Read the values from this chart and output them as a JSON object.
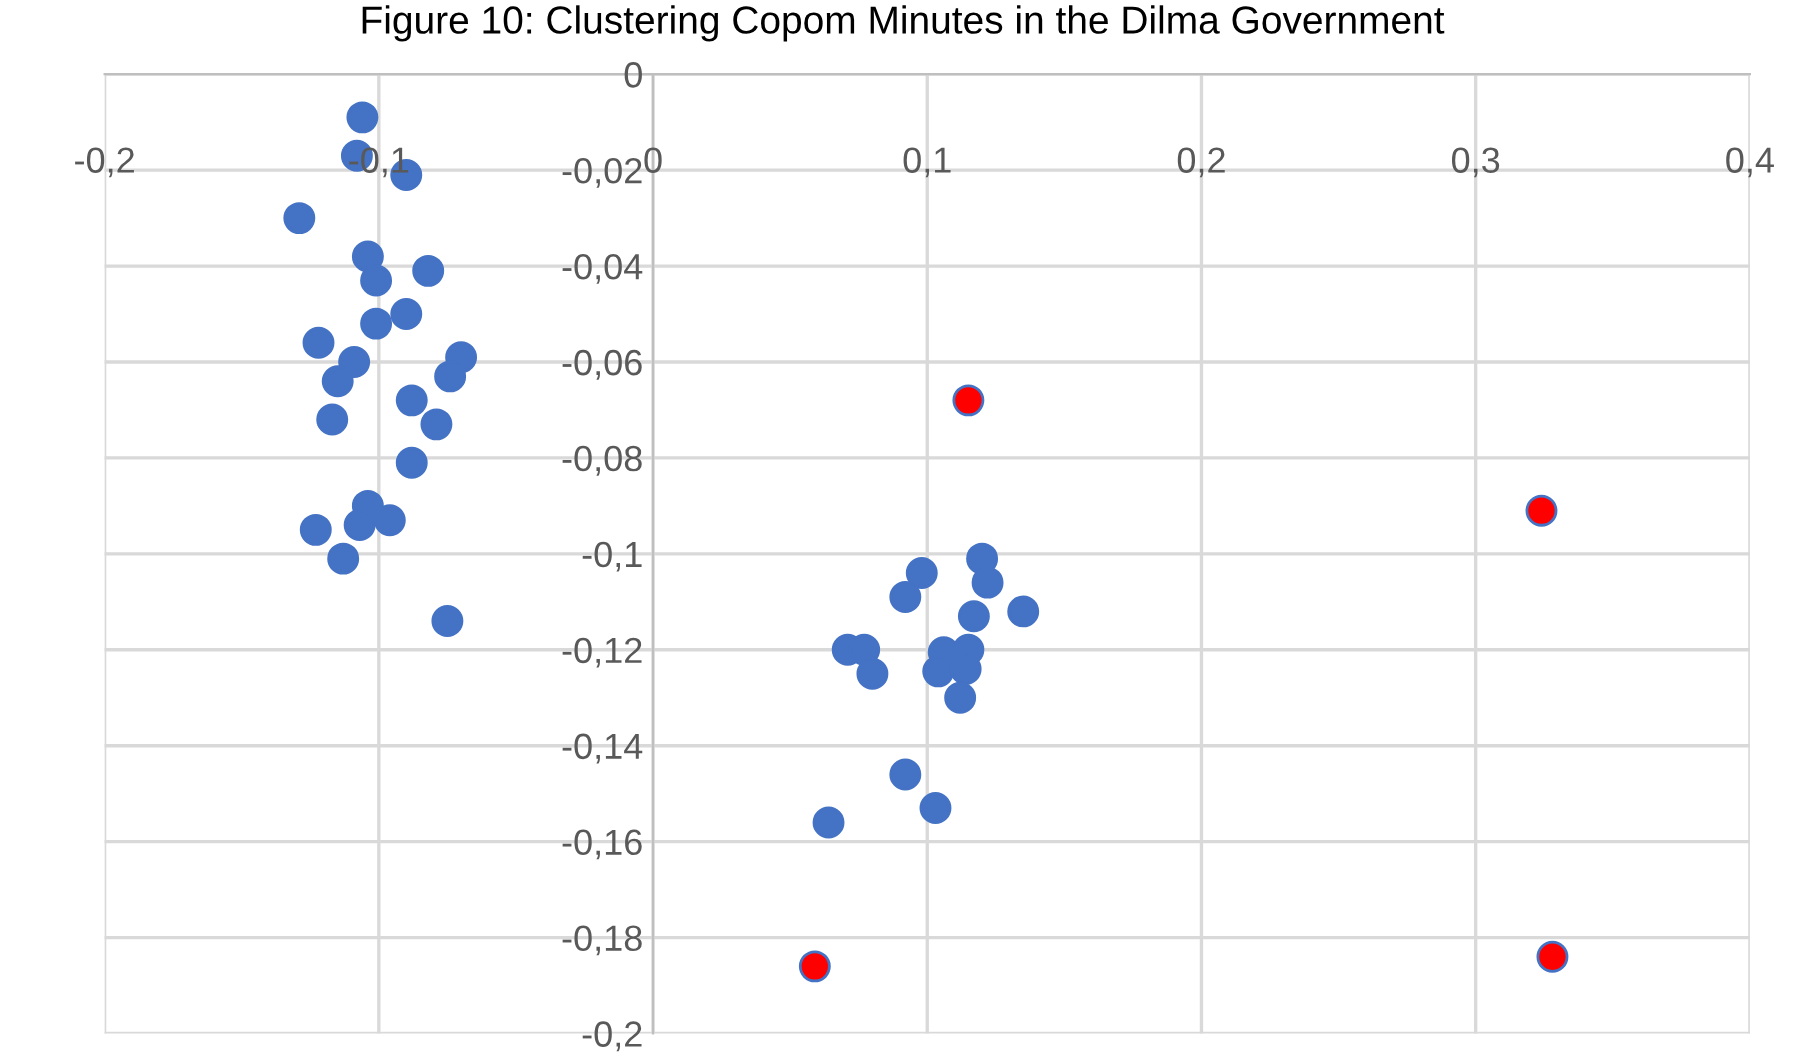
{
  "chart_data": {
    "type": "scatter",
    "title": "Figure 10: Clustering Copom Minutes in the Dilma Government",
    "xlim": [
      -0.2,
      0.4
    ],
    "ylim": [
      -0.2,
      0
    ],
    "xticks": [
      {
        "value": -0.2,
        "label": "-0,2"
      },
      {
        "value": -0.1,
        "label": "-0,1"
      },
      0,
      {
        "value": 0.1,
        "label": "0,1"
      },
      {
        "value": 0.2,
        "label": "0,2"
      },
      {
        "value": 0.3,
        "label": "0,3"
      },
      {
        "value": 0.4,
        "label": "0,4"
      }
    ],
    "yticks": [
      0,
      {
        "value": -0.02,
        "label": "-0,02"
      },
      {
        "value": -0.04,
        "label": "-0,04"
      },
      {
        "value": -0.06,
        "label": "-0,06"
      },
      {
        "value": -0.08,
        "label": "-0,08"
      },
      {
        "value": -0.1,
        "label": "-0,1"
      },
      {
        "value": -0.12,
        "label": "-0,12"
      },
      {
        "value": -0.14,
        "label": "-0,14"
      },
      {
        "value": -0.16,
        "label": "-0,16"
      },
      {
        "value": -0.18,
        "label": "-0,18"
      },
      {
        "value": -0.2,
        "label": "-0,2"
      }
    ],
    "grid": true,
    "marker": "circle",
    "series": [
      {
        "color": "#4472c4",
        "x": [
          -0.106,
          -0.108,
          -0.09,
          -0.129,
          -0.104,
          -0.101,
          -0.082,
          -0.101,
          -0.09,
          -0.122,
          -0.109,
          -0.07,
          -0.074,
          -0.115,
          -0.088,
          -0.079,
          -0.117,
          -0.088,
          -0.104,
          -0.123,
          -0.107,
          -0.096,
          -0.113,
          -0.075,
          0.12,
          0.098,
          0.122,
          0.092,
          0.117,
          0.135,
          0.071,
          0.077,
          0.106,
          0.115,
          0.104,
          0.114,
          0.08,
          0.112,
          0.092,
          0.103,
          0.064
        ],
        "values": [
          -0.009,
          -0.017,
          -0.021,
          -0.03,
          -0.038,
          -0.043,
          -0.041,
          -0.052,
          -0.05,
          -0.056,
          -0.06,
          -0.059,
          -0.063,
          -0.064,
          -0.068,
          -0.073,
          -0.072,
          -0.081,
          -0.09,
          -0.095,
          -0.094,
          -0.093,
          -0.101,
          -0.114,
          -0.101,
          -0.104,
          -0.106,
          -0.109,
          -0.113,
          -0.112,
          -0.12,
          -0.12,
          -0.1205,
          -0.12,
          -0.1245,
          -0.124,
          -0.125,
          -0.13,
          -0.146,
          -0.153,
          -0.156
        ]
      },
      {
        "color": "#ff0000",
        "x": [
          0.115,
          0.324,
          0.059,
          0.328
        ],
        "values": [
          -0.068,
          -0.091,
          -0.186,
          -0.184
        ]
      }
    ]
  }
}
